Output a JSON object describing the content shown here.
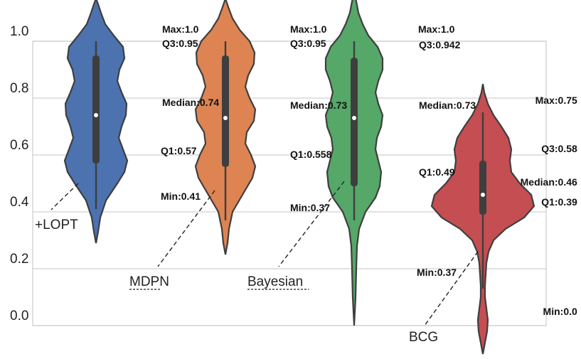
{
  "chart_data": {
    "type": "violin",
    "title": "",
    "xlabel": "",
    "ylabel": "",
    "ylim": [
      -0.02,
      1.02
    ],
    "yticks": [
      "0.0",
      "0.2",
      "0.4",
      "0.6",
      "0.8",
      "1.0"
    ],
    "grid": true,
    "series": [
      {
        "name": "+LOPT",
        "color": "#4c72b0",
        "stats": {
          "max": 1.0,
          "q3": 0.95,
          "median": 0.74,
          "q1": 0.57,
          "min": 0.41
        },
        "labels": {
          "max": "Max:1.0",
          "q3": "Q3:0.95",
          "median": "Median:0.74",
          "q1": "Q1:0.57",
          "min": "Min:0.41"
        },
        "density": [
          [
            0.29,
            0
          ],
          [
            0.33,
            3
          ],
          [
            0.38,
            6
          ],
          [
            0.44,
            14
          ],
          [
            0.5,
            30
          ],
          [
            0.54,
            40
          ],
          [
            0.58,
            44
          ],
          [
            0.62,
            38
          ],
          [
            0.66,
            32
          ],
          [
            0.7,
            36
          ],
          [
            0.74,
            42
          ],
          [
            0.78,
            43
          ],
          [
            0.82,
            36
          ],
          [
            0.86,
            30
          ],
          [
            0.9,
            33
          ],
          [
            0.94,
            40
          ],
          [
            0.98,
            38
          ],
          [
            1.02,
            25
          ],
          [
            1.06,
            13
          ],
          [
            1.1,
            7
          ],
          [
            1.13,
            3
          ],
          [
            1.15,
            0
          ]
        ]
      },
      {
        "name": "MDPN",
        "color": "#dd8452",
        "stats": {
          "max": 1.0,
          "q3": 0.95,
          "median": 0.73,
          "q1": 0.558,
          "min": 0.37
        },
        "labels": {
          "max": "Max:1.0",
          "q3": "Q3:0.95",
          "median": "Median:0.73",
          "q1": "Q1:0.558",
          "min": "Min:0.37"
        },
        "density": [
          [
            0.25,
            0
          ],
          [
            0.29,
            3
          ],
          [
            0.34,
            5
          ],
          [
            0.4,
            10
          ],
          [
            0.46,
            24
          ],
          [
            0.52,
            38
          ],
          [
            0.56,
            42
          ],
          [
            0.6,
            36
          ],
          [
            0.64,
            28
          ],
          [
            0.68,
            30
          ],
          [
            0.72,
            40
          ],
          [
            0.76,
            42
          ],
          [
            0.8,
            34
          ],
          [
            0.84,
            28
          ],
          [
            0.88,
            32
          ],
          [
            0.92,
            40
          ],
          [
            0.96,
            41
          ],
          [
            1.0,
            34
          ],
          [
            1.04,
            20
          ],
          [
            1.08,
            10
          ],
          [
            1.12,
            4
          ],
          [
            1.15,
            0
          ]
        ]
      },
      {
        "name": "Bayesian",
        "color": "#55a868",
        "stats": {
          "max": 1.0,
          "q3": 0.942,
          "median": 0.73,
          "q1": 0.49,
          "min": 0.37
        },
        "labels": {
          "max": "Max:1.0",
          "q3": "Q3:0.942",
          "median": "Median:0.73",
          "q1": "Q1:0.49",
          "min": "Min:0.37"
        },
        "density": [
          [
            0.0,
            0
          ],
          [
            0.1,
            2
          ],
          [
            0.2,
            3
          ],
          [
            0.28,
            4
          ],
          [
            0.34,
            7
          ],
          [
            0.4,
            16
          ],
          [
            0.45,
            30
          ],
          [
            0.49,
            36
          ],
          [
            0.54,
            38
          ],
          [
            0.58,
            34
          ],
          [
            0.62,
            30
          ],
          [
            0.66,
            32
          ],
          [
            0.7,
            38
          ],
          [
            0.74,
            40
          ],
          [
            0.78,
            34
          ],
          [
            0.82,
            30
          ],
          [
            0.86,
            34
          ],
          [
            0.9,
            40
          ],
          [
            0.94,
            40
          ],
          [
            0.98,
            33
          ],
          [
            1.02,
            20
          ],
          [
            1.06,
            12
          ],
          [
            1.1,
            6
          ],
          [
            1.14,
            3
          ],
          [
            1.17,
            0
          ]
        ]
      },
      {
        "name": "BCG",
        "color": "#c44e52",
        "stats": {
          "max": 0.75,
          "q3": 0.58,
          "median": 0.46,
          "q1": 0.39,
          "min": 0.0
        },
        "labels": {
          "max": "Max:0.75",
          "q3": "Q3:0.58",
          "median": "Median:0.46",
          "q1": "Q1:0.39",
          "min": "Min:0.0"
        },
        "whisker": [
          0.13,
          0.75
        ],
        "density": [
          [
            -0.1,
            0
          ],
          [
            -0.06,
            3
          ],
          [
            -0.02,
            6
          ],
          [
            0.02,
            7
          ],
          [
            0.06,
            5
          ],
          [
            0.1,
            3
          ],
          [
            0.14,
            3
          ],
          [
            0.18,
            4
          ],
          [
            0.22,
            5
          ],
          [
            0.26,
            8
          ],
          [
            0.3,
            15
          ],
          [
            0.34,
            32
          ],
          [
            0.38,
            58
          ],
          [
            0.42,
            72
          ],
          [
            0.46,
            68
          ],
          [
            0.5,
            52
          ],
          [
            0.54,
            40
          ],
          [
            0.58,
            38
          ],
          [
            0.62,
            40
          ],
          [
            0.66,
            36
          ],
          [
            0.7,
            26
          ],
          [
            0.74,
            15
          ],
          [
            0.78,
            7
          ],
          [
            0.82,
            2
          ],
          [
            0.85,
            0
          ]
        ]
      }
    ]
  }
}
